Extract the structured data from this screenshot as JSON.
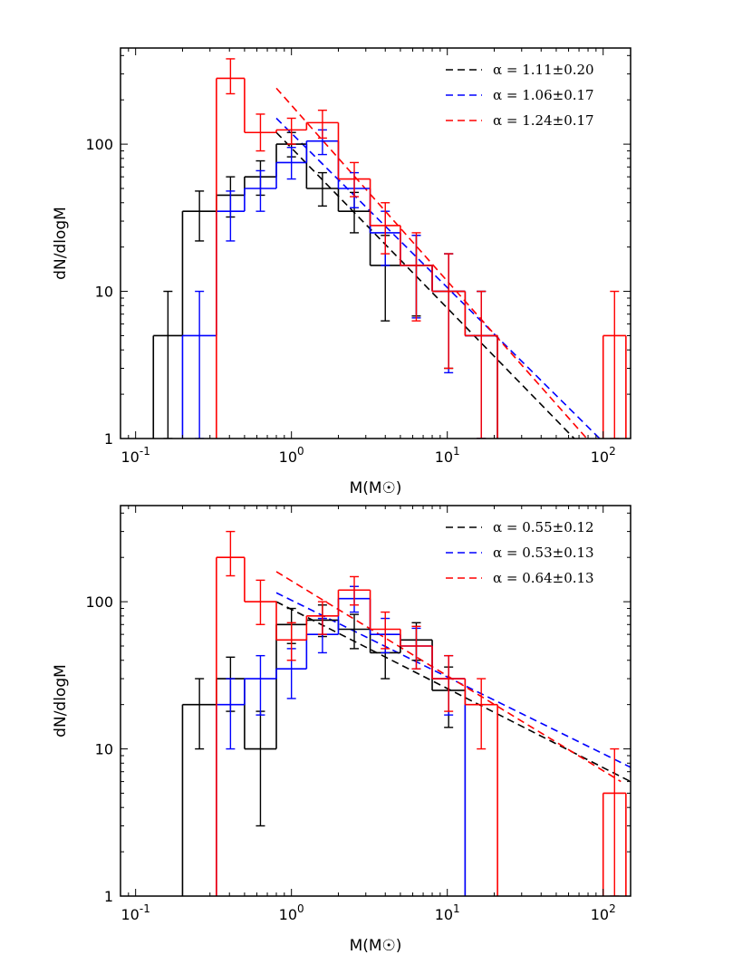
{
  "figure": {
    "colors": {
      "black": "#000000",
      "blue": "#0000ff",
      "red": "#ff0000"
    }
  },
  "chart_data": [
    {
      "type": "histogram",
      "panel": "top",
      "title": "",
      "xlabel": "M(M☉)",
      "ylabel": "dN/dlogM",
      "xscale": "log",
      "yscale": "log",
      "xlim": [
        0.08,
        150
      ],
      "ylim": [
        1,
        450
      ],
      "xticks": [
        {
          "v": 0.1,
          "base": "10",
          "exp": "-1"
        },
        {
          "v": 1,
          "base": "10",
          "exp": "0"
        },
        {
          "v": 10,
          "base": "10",
          "exp": "1"
        },
        {
          "v": 100,
          "base": "10",
          "exp": "2"
        }
      ],
      "yticks": [
        {
          "v": 1,
          "label": "1"
        },
        {
          "v": 10,
          "label": "10"
        },
        {
          "v": 100,
          "label": "100"
        }
      ],
      "legend_position": "top-right",
      "series": [
        {
          "name": "black",
          "color": "#000000",
          "legend": "α = 1.11±0.20",
          "bins": [
            {
              "x0": 0.13,
              "x1": 0.2,
              "y": 5,
              "err": [
                1,
                10
              ]
            },
            {
              "x0": 0.2,
              "x1": 0.33,
              "y": 35,
              "err": [
                22,
                48
              ]
            },
            {
              "x0": 0.33,
              "x1": 0.5,
              "y": 45,
              "err": [
                32,
                60
              ]
            },
            {
              "x0": 0.5,
              "x1": 0.8,
              "y": 60,
              "err": [
                45,
                77
              ]
            },
            {
              "x0": 0.8,
              "x1": 1.25,
              "y": 100,
              "err": [
                82,
                120
              ]
            },
            {
              "x0": 1.25,
              "x1": 2.0,
              "y": 50,
              "err": [
                38,
                64
              ]
            },
            {
              "x0": 2.0,
              "x1": 3.2,
              "y": 35,
              "err": [
                25,
                47
              ]
            },
            {
              "x0": 3.2,
              "x1": 5.0,
              "y": 15,
              "err": [
                6.3,
                24
              ]
            },
            {
              "x0": 5.0,
              "x1": 8.0,
              "y": 15,
              "err": [
                6.8,
                24
              ]
            },
            {
              "x0": 8.0,
              "x1": 13,
              "y": 10,
              "err": [
                3,
                18
              ]
            },
            {
              "x0": 13,
              "x1": 21,
              "y": 5,
              "err": [
                1,
                10
              ]
            }
          ],
          "fit": {
            "x": [
              0.8,
              85
            ],
            "y": [
              120,
              0.75
            ]
          }
        },
        {
          "name": "blue",
          "color": "#0000ff",
          "legend": "α = 1.06±0.17",
          "bins": [
            {
              "x0": 0.2,
              "x1": 0.33,
              "y": 5,
              "err": [
                1,
                10
              ]
            },
            {
              "x0": 0.33,
              "x1": 0.5,
              "y": 35,
              "err": [
                22,
                48
              ]
            },
            {
              "x0": 0.5,
              "x1": 0.8,
              "y": 50,
              "err": [
                35,
                66
              ]
            },
            {
              "x0": 0.8,
              "x1": 1.25,
              "y": 75,
              "err": [
                58,
                95
              ]
            },
            {
              "x0": 1.25,
              "x1": 2.0,
              "y": 105,
              "err": [
                85,
                125
              ]
            },
            {
              "x0": 2.0,
              "x1": 3.2,
              "y": 50,
              "err": [
                37,
                64
              ]
            },
            {
              "x0": 3.2,
              "x1": 5.0,
              "y": 25,
              "err": [
                15,
                35
              ]
            },
            {
              "x0": 5.0,
              "x1": 8.0,
              "y": 15,
              "err": [
                6.6,
                24
              ]
            },
            {
              "x0": 8.0,
              "x1": 13,
              "y": 10,
              "err": [
                2.8,
                18
              ]
            },
            {
              "x0": 13,
              "x1": 21,
              "y": 5,
              "err": [
                1,
                10
              ]
            }
          ],
          "fit": {
            "x": [
              0.8,
              95
            ],
            "y": [
              150,
              1.0
            ]
          }
        },
        {
          "name": "red",
          "color": "#ff0000",
          "legend": "α = 1.24±0.17",
          "bins": [
            {
              "x0": 0.33,
              "x1": 0.5,
              "y": 280,
              "err": [
                220,
                380
              ]
            },
            {
              "x0": 0.5,
              "x1": 0.8,
              "y": 120,
              "err": [
                90,
                160
              ]
            },
            {
              "x0": 0.8,
              "x1": 1.25,
              "y": 125,
              "err": [
                100,
                150
              ]
            },
            {
              "x0": 1.25,
              "x1": 2.0,
              "y": 140,
              "err": [
                110,
                170
              ]
            },
            {
              "x0": 2.0,
              "x1": 3.2,
              "y": 58,
              "err": [
                44,
                75
              ]
            },
            {
              "x0": 3.2,
              "x1": 5.0,
              "y": 28,
              "err": [
                18,
                40
              ]
            },
            {
              "x0": 5.0,
              "x1": 8.0,
              "y": 15,
              "err": [
                6.3,
                25
              ]
            },
            {
              "x0": 8.0,
              "x1": 13,
              "y": 10,
              "err": [
                3,
                18
              ]
            },
            {
              "x0": 13,
              "x1": 21,
              "y": 5,
              "err": [
                1,
                10
              ]
            },
            {
              "x0": 100,
              "x1": 140,
              "y": 5,
              "err": [
                1,
                10
              ]
            }
          ],
          "fit": {
            "x": [
              0.8,
              90
            ],
            "y": [
              240,
              0.85
            ]
          }
        }
      ]
    },
    {
      "type": "histogram",
      "panel": "bottom",
      "title": "",
      "xlabel": "M(M☉)",
      "ylabel": "dN/dlogM",
      "xscale": "log",
      "yscale": "log",
      "xlim": [
        0.08,
        150
      ],
      "ylim": [
        1,
        450
      ],
      "xticks": [
        {
          "v": 0.1,
          "base": "10",
          "exp": "-1"
        },
        {
          "v": 1,
          "base": "10",
          "exp": "0"
        },
        {
          "v": 10,
          "base": "10",
          "exp": "1"
        },
        {
          "v": 100,
          "base": "10",
          "exp": "2"
        }
      ],
      "yticks": [
        {
          "v": 1,
          "label": "1"
        },
        {
          "v": 10,
          "label": "10"
        },
        {
          "v": 100,
          "label": "100"
        }
      ],
      "legend_position": "top-right",
      "series": [
        {
          "name": "black",
          "color": "#000000",
          "legend": "α = 0.55±0.12",
          "bins": [
            {
              "x0": 0.2,
              "x1": 0.33,
              "y": 20,
              "err": [
                10,
                30
              ]
            },
            {
              "x0": 0.33,
              "x1": 0.5,
              "y": 30,
              "err": [
                18,
                42
              ]
            },
            {
              "x0": 0.5,
              "x1": 0.8,
              "y": 10,
              "err": [
                3,
                18
              ]
            },
            {
              "x0": 0.8,
              "x1": 1.25,
              "y": 70,
              "err": [
                52,
                90
              ]
            },
            {
              "x0": 1.25,
              "x1": 2.0,
              "y": 75,
              "err": [
                58,
                95
              ]
            },
            {
              "x0": 2.0,
              "x1": 3.2,
              "y": 65,
              "err": [
                48,
                82
              ]
            },
            {
              "x0": 3.2,
              "x1": 5.0,
              "y": 45,
              "err": [
                30,
                60
              ]
            },
            {
              "x0": 5.0,
              "x1": 8.0,
              "y": 55,
              "err": [
                40,
                72
              ]
            },
            {
              "x0": 8.0,
              "x1": 13,
              "y": 25,
              "err": [
                14,
                36
              ]
            }
          ],
          "fit": {
            "x": [
              0.8,
              150
            ],
            "y": [
              100,
              6.0
            ]
          }
        },
        {
          "name": "blue",
          "color": "#0000ff",
          "legend": "α = 0.53±0.13",
          "bins": [
            {
              "x0": 0.33,
              "x1": 0.5,
              "y": 20,
              "err": [
                10,
                30
              ]
            },
            {
              "x0": 0.5,
              "x1": 0.8,
              "y": 30,
              "err": [
                17,
                43
              ]
            },
            {
              "x0": 0.8,
              "x1": 1.25,
              "y": 35,
              "err": [
                22,
                48
              ]
            },
            {
              "x0": 1.25,
              "x1": 2.0,
              "y": 60,
              "err": [
                45,
                77
              ]
            },
            {
              "x0": 2.0,
              "x1": 3.2,
              "y": 105,
              "err": [
                85,
                127
              ]
            },
            {
              "x0": 3.2,
              "x1": 5.0,
              "y": 60,
              "err": [
                45,
                77
              ]
            },
            {
              "x0": 5.0,
              "x1": 8.0,
              "y": 50,
              "err": [
                35,
                66
              ]
            },
            {
              "x0": 8.0,
              "x1": 13,
              "y": 30,
              "err": [
                17,
                43
              ]
            }
          ],
          "fit": {
            "x": [
              0.8,
              150
            ],
            "y": [
              115,
              7.5
            ]
          }
        },
        {
          "name": "red",
          "color": "#ff0000",
          "legend": "α = 0.64±0.13",
          "bins": [
            {
              "x0": 0.33,
              "x1": 0.5,
              "y": 200,
              "err": [
                150,
                300
              ]
            },
            {
              "x0": 0.5,
              "x1": 0.8,
              "y": 100,
              "err": [
                70,
                140
              ]
            },
            {
              "x0": 0.8,
              "x1": 1.25,
              "y": 55,
              "err": [
                40,
                72
              ]
            },
            {
              "x0": 1.25,
              "x1": 2.0,
              "y": 80,
              "err": [
                60,
                100
              ]
            },
            {
              "x0": 2.0,
              "x1": 3.2,
              "y": 120,
              "err": [
                95,
                148
              ]
            },
            {
              "x0": 3.2,
              "x1": 5.0,
              "y": 65,
              "err": [
                48,
                85
              ]
            },
            {
              "x0": 5.0,
              "x1": 8.0,
              "y": 50,
              "err": [
                35,
                68
              ]
            },
            {
              "x0": 8.0,
              "x1": 13,
              "y": 30,
              "err": [
                18,
                43
              ]
            },
            {
              "x0": 13,
              "x1": 21,
              "y": 20,
              "err": [
                10,
                30
              ]
            },
            {
              "x0": 100,
              "x1": 140,
              "y": 5,
              "err": [
                1,
                10
              ]
            }
          ],
          "fit": {
            "x": [
              0.8,
              130
            ],
            "y": [
              160,
              6.0
            ]
          }
        }
      ]
    }
  ]
}
